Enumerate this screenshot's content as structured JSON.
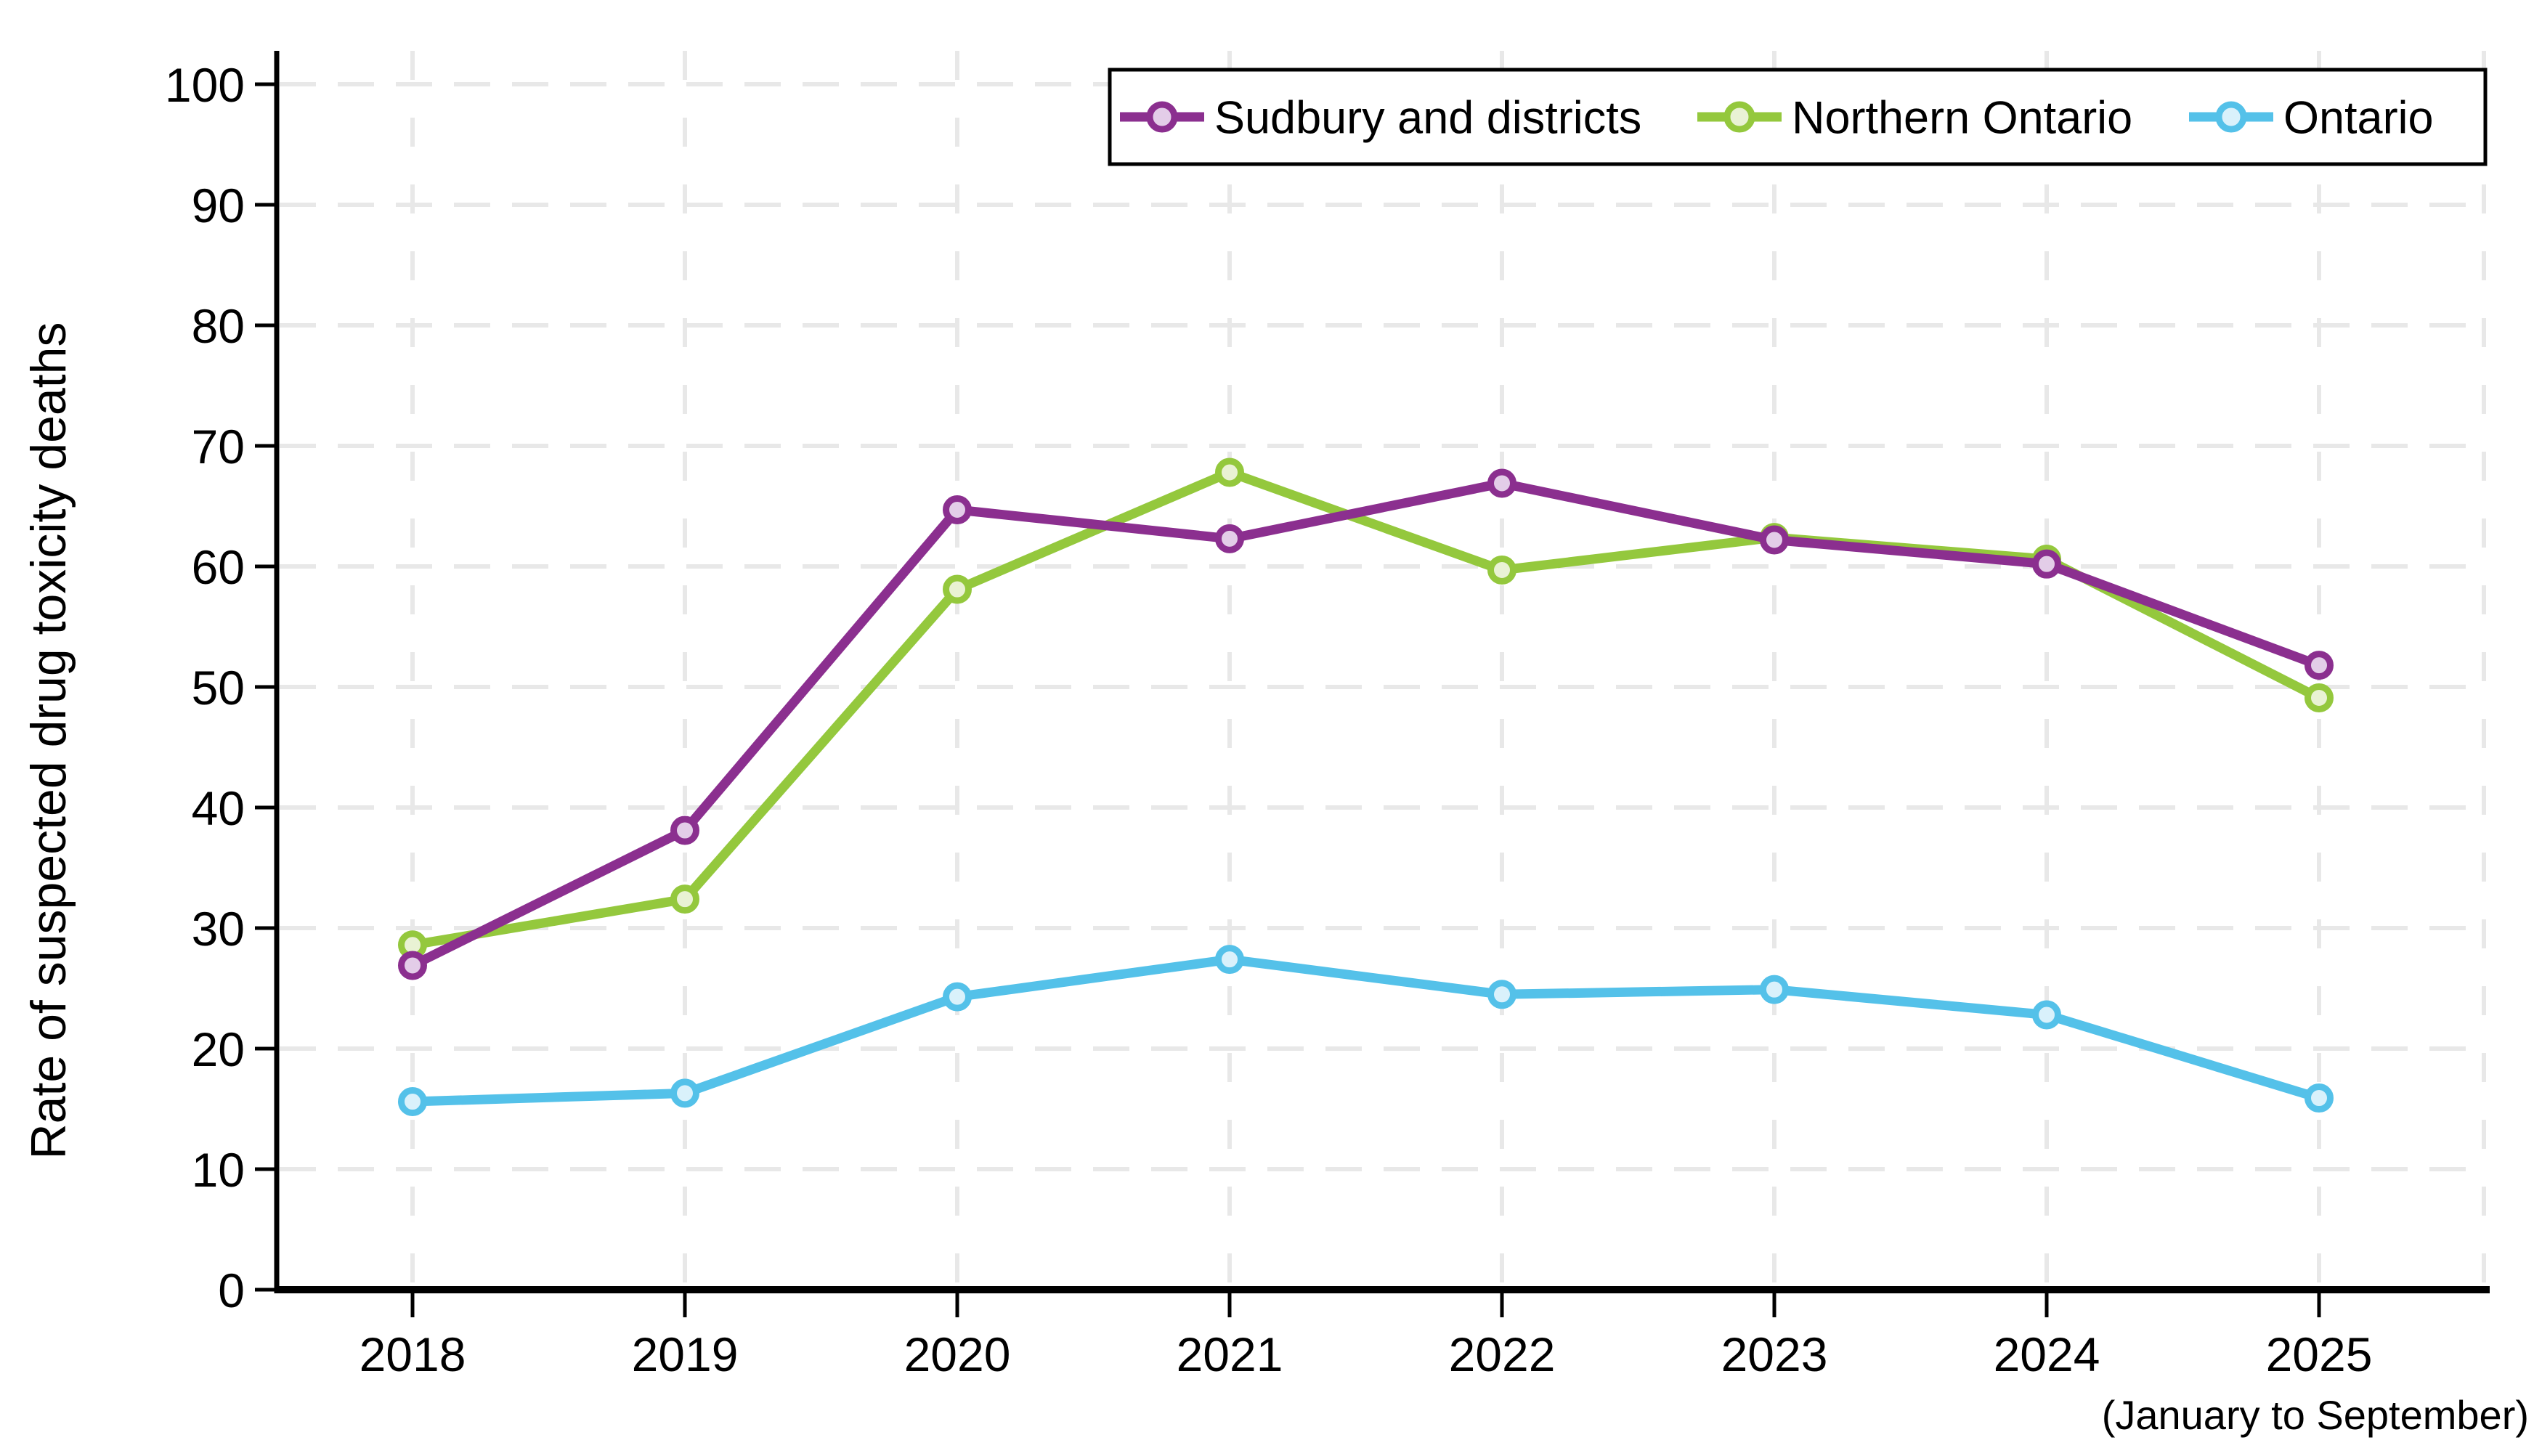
{
  "chart_data": {
    "type": "line",
    "title": "",
    "ylabel": "Rate of suspected drug toxicity deaths",
    "xlabel": "",
    "x_note": "(January to September)",
    "x_note_applies_to": "2025",
    "categories": [
      "2018",
      "2019",
      "2020",
      "2021",
      "2022",
      "2023",
      "2024",
      "2025"
    ],
    "ylim": [
      0,
      100
    ],
    "ytick_step": 10,
    "yticks": [
      0,
      10,
      20,
      30,
      40,
      50,
      60,
      70,
      80,
      90,
      100
    ],
    "grid": "both-dashed",
    "legend_position": "top-right-boxed",
    "series": [
      {
        "name": "Sudbury and districts",
        "color": "#8b2f8f",
        "marker_fill": "#e3cde8",
        "values": [
          26.9,
          38.1,
          64.7,
          62.3,
          66.9,
          62.2,
          60.2,
          51.8
        ]
      },
      {
        "name": "Northern Ontario",
        "color": "#94c83d",
        "marker_fill": "#e9f2d4",
        "values": [
          28.6,
          32.4,
          58.1,
          67.8,
          59.7,
          62.4,
          60.6,
          49.1
        ]
      },
      {
        "name": "Ontario",
        "color": "#54c1e9",
        "marker_fill": "#d9f1fb",
        "values": [
          15.6,
          16.3,
          24.3,
          27.4,
          24.5,
          24.9,
          22.8,
          15.9
        ]
      }
    ],
    "colors": {
      "axis": "#000000",
      "gridline": "#e8e8e8",
      "background": "#ffffff",
      "legend_border": "#000000"
    }
  }
}
